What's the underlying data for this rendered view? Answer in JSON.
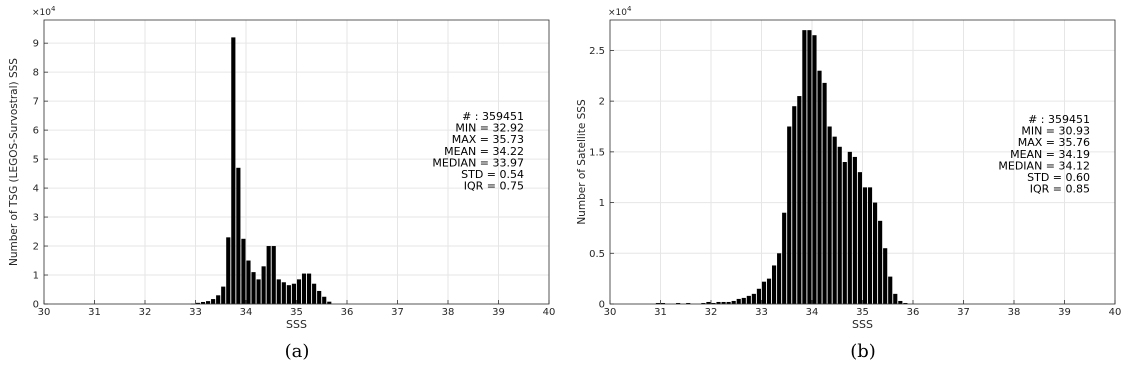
{
  "chart_data": [
    {
      "type": "bar",
      "panel_label": "(a)",
      "xlabel": "SSS",
      "ylabel": "Number of TSG (LEGOS-Survostral) SSS",
      "y_multiplier": "×10",
      "y_multiplier_exp": "4",
      "xlim": [
        30,
        40
      ],
      "ylim": [
        0,
        9.8
      ],
      "xticks": [
        30,
        31,
        32,
        33,
        34,
        35,
        36,
        37,
        38,
        39,
        40
      ],
      "yticks": [
        0,
        1,
        2,
        3,
        4,
        5,
        6,
        7,
        8,
        9
      ],
      "grid": true,
      "bin_width": 0.1,
      "bins": [
        [
          32.9,
          0.01
        ],
        [
          33.0,
          0.04
        ],
        [
          33.1,
          0.07
        ],
        [
          33.2,
          0.1
        ],
        [
          33.3,
          0.17
        ],
        [
          33.4,
          0.3
        ],
        [
          33.5,
          0.6
        ],
        [
          33.6,
          2.3
        ],
        [
          33.7,
          9.2
        ],
        [
          33.8,
          4.7
        ],
        [
          33.9,
          2.25
        ],
        [
          34.0,
          1.5
        ],
        [
          34.1,
          1.1
        ],
        [
          34.2,
          0.85
        ],
        [
          34.3,
          1.3
        ],
        [
          34.4,
          2.0
        ],
        [
          34.5,
          2.0
        ],
        [
          34.6,
          0.85
        ],
        [
          34.7,
          0.75
        ],
        [
          34.8,
          0.65
        ],
        [
          34.9,
          0.7
        ],
        [
          35.0,
          0.85
        ],
        [
          35.1,
          1.05
        ],
        [
          35.2,
          1.05
        ],
        [
          35.3,
          0.7
        ],
        [
          35.4,
          0.45
        ],
        [
          35.5,
          0.25
        ],
        [
          35.6,
          0.08
        ]
      ],
      "stats": [
        "# : 359451",
        "MIN = 32.92",
        "MAX =  35.73",
        "MEAN = 34.22",
        "MEDIAN = 33.97",
        "STD = 0.54",
        "IQR = 0.75"
      ]
    },
    {
      "type": "bar",
      "panel_label": "(b)",
      "xlabel": "SSS",
      "ylabel": "Number of Satellite SSS",
      "y_multiplier": "×10",
      "y_multiplier_exp": "4",
      "xlim": [
        30,
        40
      ],
      "ylim": [
        0,
        2.8
      ],
      "xticks": [
        30,
        31,
        32,
        33,
        34,
        35,
        36,
        37,
        38,
        39,
        40
      ],
      "yticks": [
        0,
        0.5,
        1,
        1.5,
        2,
        2.5
      ],
      "grid": true,
      "bin_width": 0.1,
      "bins": [
        [
          30.9,
          0.01
        ],
        [
          31.0,
          0.01
        ],
        [
          31.3,
          0.01
        ],
        [
          31.5,
          0.01
        ],
        [
          31.8,
          0.01
        ],
        [
          31.9,
          0.02
        ],
        [
          32.0,
          0.01
        ],
        [
          32.1,
          0.02
        ],
        [
          32.2,
          0.02
        ],
        [
          32.3,
          0.02
        ],
        [
          32.4,
          0.03
        ],
        [
          32.5,
          0.05
        ],
        [
          32.6,
          0.06
        ],
        [
          32.7,
          0.08
        ],
        [
          32.8,
          0.1
        ],
        [
          32.9,
          0.15
        ],
        [
          33.0,
          0.22
        ],
        [
          33.1,
          0.25
        ],
        [
          33.2,
          0.38
        ],
        [
          33.3,
          0.5
        ],
        [
          33.4,
          0.9
        ],
        [
          33.5,
          1.75
        ],
        [
          33.6,
          1.95
        ],
        [
          33.7,
          2.05
        ],
        [
          33.8,
          2.7
        ],
        [
          33.9,
          2.7
        ],
        [
          34.0,
          2.65
        ],
        [
          34.1,
          2.3
        ],
        [
          34.2,
          2.18
        ],
        [
          34.3,
          1.75
        ],
        [
          34.4,
          1.65
        ],
        [
          34.5,
          1.55
        ],
        [
          34.6,
          1.4
        ],
        [
          34.7,
          1.5
        ],
        [
          34.8,
          1.45
        ],
        [
          34.9,
          1.3
        ],
        [
          35.0,
          1.15
        ],
        [
          35.1,
          1.15
        ],
        [
          35.2,
          1.0
        ],
        [
          35.3,
          0.82
        ],
        [
          35.4,
          0.55
        ],
        [
          35.5,
          0.27
        ],
        [
          35.6,
          0.1
        ],
        [
          35.7,
          0.03
        ],
        [
          35.8,
          0.01
        ]
      ],
      "stats": [
        "# : 359451",
        "MIN = 30.93",
        "MAX =  35.76",
        "MEAN = 34.19",
        "MEDIAN = 34.12",
        "STD = 0.60",
        "IQR = 0.85"
      ]
    }
  ]
}
